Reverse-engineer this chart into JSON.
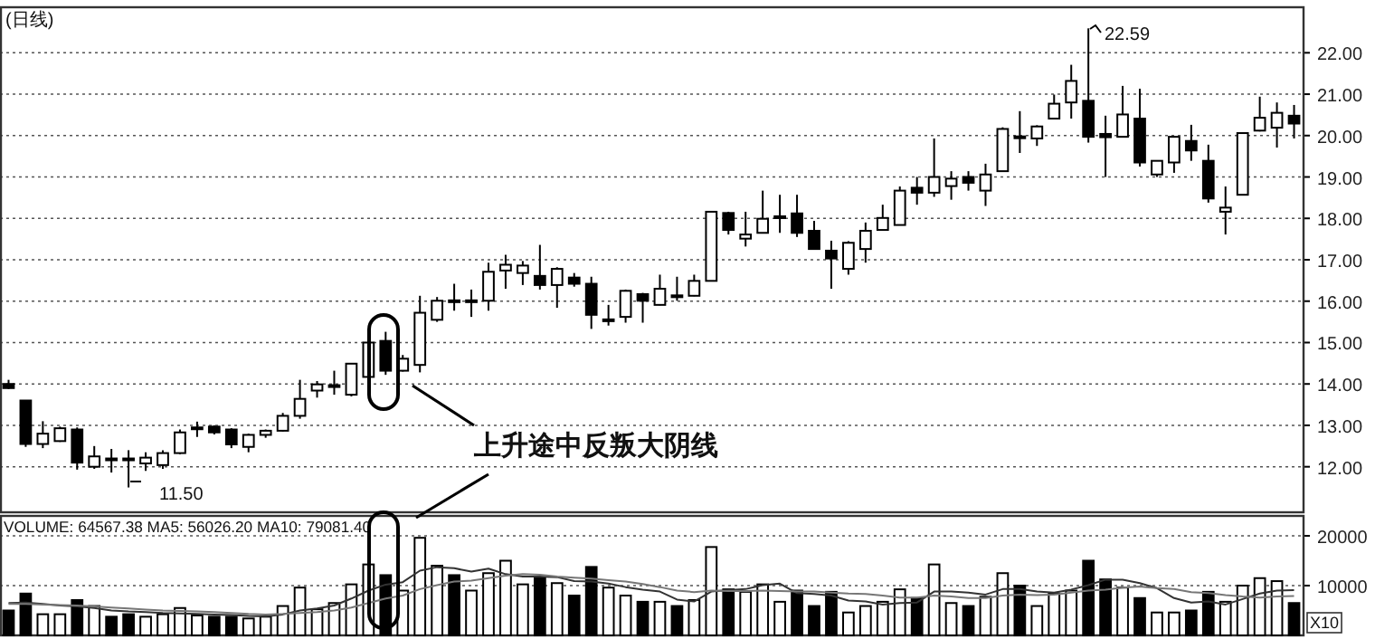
{
  "chart_data": [
    {
      "type": "candlestick",
      "title": "(日线)",
      "categories": [
        null,
        null,
        null,
        null,
        null,
        null,
        null,
        null,
        null,
        null,
        null,
        null,
        null,
        null,
        null,
        null,
        null,
        null,
        null,
        null,
        null,
        null,
        null,
        null,
        null,
        null,
        null,
        null,
        null,
        null,
        null,
        null,
        null,
        null,
        null,
        null,
        null,
        null,
        null,
        null,
        null,
        null,
        null,
        null,
        null,
        null,
        null,
        null,
        null,
        null,
        null,
        null,
        null,
        null,
        null,
        null,
        null,
        null,
        null,
        null,
        null,
        null,
        null,
        null,
        null,
        null,
        null,
        null,
        null,
        null,
        null,
        null,
        null,
        null,
        null,
        null
      ],
      "ohlc": [
        [
          14.0,
          14.1,
          13.88,
          13.9
        ],
        [
          13.6,
          13.6,
          12.48,
          12.55
        ],
        [
          12.55,
          13.1,
          12.45,
          12.8
        ],
        [
          12.62,
          12.97,
          12.6,
          12.93
        ],
        [
          12.9,
          12.95,
          11.93,
          12.1
        ],
        [
          12.0,
          12.5,
          11.95,
          12.25
        ],
        [
          12.2,
          12.43,
          11.86,
          12.18
        ],
        [
          12.18,
          12.4,
          11.5,
          12.2
        ],
        [
          12.08,
          12.35,
          11.9,
          12.22
        ],
        [
          12.04,
          12.4,
          11.95,
          12.33
        ],
        [
          12.33,
          12.9,
          12.3,
          12.83
        ],
        [
          12.93,
          13.09,
          12.72,
          12.95
        ],
        [
          12.97,
          13.0,
          12.78,
          12.83
        ],
        [
          12.9,
          12.93,
          12.45,
          12.54
        ],
        [
          12.48,
          12.8,
          12.35,
          12.77
        ],
        [
          12.77,
          12.9,
          12.7,
          12.87
        ],
        [
          12.87,
          13.3,
          12.85,
          13.23
        ],
        [
          13.23,
          14.1,
          13.16,
          13.64
        ],
        [
          13.84,
          14.07,
          13.67,
          13.99
        ],
        [
          13.95,
          14.32,
          13.74,
          13.97
        ],
        [
          13.74,
          14.5,
          13.7,
          14.49
        ],
        [
          14.17,
          15.05,
          14.1,
          15.0
        ],
        [
          15.04,
          15.26,
          14.22,
          14.32
        ],
        [
          14.32,
          14.7,
          14.3,
          14.61
        ],
        [
          14.46,
          16.13,
          14.28,
          15.72
        ],
        [
          15.55,
          16.1,
          15.5,
          16.01
        ],
        [
          16.0,
          16.42,
          15.77,
          16.02
        ],
        [
          16.0,
          16.28,
          15.62,
          16.02
        ],
        [
          16.01,
          16.93,
          15.77,
          16.71
        ],
        [
          16.74,
          17.12,
          16.3,
          16.88
        ],
        [
          16.68,
          16.97,
          16.39,
          16.86
        ],
        [
          16.61,
          17.36,
          16.28,
          16.39
        ],
        [
          16.39,
          16.82,
          15.84,
          16.78
        ],
        [
          16.57,
          16.68,
          16.35,
          16.42
        ],
        [
          16.42,
          16.59,
          15.33,
          15.67
        ],
        [
          15.54,
          15.91,
          15.41,
          15.56
        ],
        [
          15.62,
          16.28,
          15.48,
          16.25
        ],
        [
          16.17,
          16.2,
          15.48,
          16.01
        ],
        [
          15.91,
          16.64,
          15.9,
          16.3
        ],
        [
          16.12,
          16.59,
          16.01,
          16.14
        ],
        [
          16.13,
          16.64,
          16.12,
          16.49
        ],
        [
          16.49,
          18.16,
          16.49,
          18.16
        ],
        [
          18.13,
          18.16,
          17.61,
          17.72
        ],
        [
          17.51,
          18.16,
          17.32,
          17.61
        ],
        [
          17.65,
          18.67,
          17.65,
          17.99
        ],
        [
          18.03,
          18.57,
          17.65,
          18.05
        ],
        [
          18.12,
          18.57,
          17.55,
          17.65
        ],
        [
          17.7,
          17.94,
          17.26,
          17.26
        ],
        [
          17.22,
          17.46,
          16.3,
          17.03
        ],
        [
          16.78,
          17.45,
          16.64,
          17.41
        ],
        [
          17.26,
          17.9,
          16.93,
          17.7
        ],
        [
          17.72,
          18.33,
          17.72,
          18.01
        ],
        [
          17.84,
          18.77,
          17.84,
          18.67
        ],
        [
          18.74,
          19.0,
          18.33,
          18.62
        ],
        [
          18.62,
          19.93,
          18.52,
          19.0
        ],
        [
          18.78,
          19.14,
          18.45,
          18.96
        ],
        [
          19.0,
          19.14,
          18.67,
          18.86
        ],
        [
          18.67,
          19.32,
          18.3,
          19.06
        ],
        [
          19.14,
          20.2,
          19.14,
          20.16
        ],
        [
          19.96,
          20.59,
          19.58,
          19.98
        ],
        [
          19.93,
          20.25,
          19.75,
          20.22
        ],
        [
          20.41,
          20.99,
          20.4,
          20.77
        ],
        [
          20.8,
          21.71,
          20.41,
          21.32
        ],
        [
          20.84,
          22.59,
          19.83,
          19.97
        ],
        [
          20.04,
          20.48,
          19.0,
          19.96
        ],
        [
          19.97,
          21.2,
          19.97,
          20.51
        ],
        [
          20.41,
          21.13,
          19.25,
          19.35
        ],
        [
          19.06,
          19.4,
          19.0,
          19.39
        ],
        [
          19.35,
          19.97,
          19.1,
          19.97
        ],
        [
          19.87,
          20.26,
          19.39,
          19.64
        ],
        [
          19.39,
          19.78,
          18.38,
          18.48
        ],
        [
          18.16,
          18.77,
          17.61,
          18.26
        ],
        [
          18.57,
          20.06,
          18.57,
          20.06
        ],
        [
          20.12,
          20.94,
          20.1,
          20.43
        ],
        [
          20.19,
          20.8,
          19.71,
          20.55
        ],
        [
          20.48,
          20.74,
          19.93,
          20.29
        ]
      ],
      "ylim": [
        10.9,
        23.1
      ],
      "yticks": [
        {
          "value": 12,
          "label": "12.00"
        },
        {
          "value": 13,
          "label": "13.00"
        },
        {
          "value": 14,
          "label": "14.00"
        },
        {
          "value": 15,
          "label": "15.00"
        },
        {
          "value": 16,
          "label": "16.00"
        },
        {
          "value": 17,
          "label": "17.00"
        },
        {
          "value": 18,
          "label": "18.00"
        },
        {
          "value": 19,
          "label": "19.00"
        },
        {
          "value": 20,
          "label": "20.00"
        },
        {
          "value": 21,
          "label": "21.00"
        },
        {
          "value": 22,
          "label": "22.00"
        }
      ],
      "grid": "y",
      "tick_labels": "y",
      "annotations": [
        "上升途中反叛大阴线",
        "22.59",
        "11.50"
      ]
    },
    {
      "type": "bar",
      "categories": [
        null,
        null,
        null,
        null,
        null,
        null,
        null,
        null,
        null,
        null,
        null,
        null,
        null,
        null,
        null,
        null,
        null,
        null,
        null,
        null,
        null,
        null,
        null,
        null,
        null,
        null,
        null,
        null,
        null,
        null,
        null,
        null,
        null,
        null,
        null,
        null,
        null,
        null,
        null,
        null,
        null,
        null,
        null,
        null,
        null,
        null,
        null,
        null,
        null,
        null,
        null,
        null,
        null,
        null,
        null,
        null,
        null,
        null,
        null,
        null,
        null,
        null,
        null,
        null,
        null,
        null,
        null,
        null,
        null,
        null,
        null,
        null,
        null,
        null,
        null,
        null
      ],
      "series": [
        {
          "type": "bar",
          "values": [
            5000,
            8400,
            4250,
            4250,
            7100,
            5900,
            3750,
            4250,
            3750,
            4250,
            5500,
            4000,
            3750,
            3750,
            3400,
            3750,
            5900,
            9600,
            5250,
            6500,
            10250,
            14250,
            12100,
            9000,
            19600,
            14000,
            12100,
            9000,
            12500,
            15000,
            10250,
            11500,
            10500,
            8000,
            13750,
            9600,
            8000,
            6750,
            6750,
            5900,
            7100,
            17750,
            9250,
            8750,
            10250,
            6750,
            9000,
            5900,
            8750,
            4600,
            5900,
            6750,
            9250,
            7500,
            14250,
            6500,
            5900,
            7750,
            12500,
            10000,
            5900,
            8400,
            9000,
            15000,
            11250,
            9600,
            7500,
            4600,
            4600,
            5000,
            8750,
            6750,
            10000,
            11500,
            10900,
            6500
          ],
          "colors": [
            "#000000",
            "#000000",
            "#ffffff",
            "#ffffff",
            "#000000",
            "#ffffff",
            "#000000",
            "#000000",
            "#ffffff",
            "#ffffff",
            "#ffffff",
            "#ffffff",
            "#000000",
            "#000000",
            "#ffffff",
            "#ffffff",
            "#ffffff",
            "#ffffff",
            "#ffffff",
            "#ffffff",
            "#ffffff",
            "#ffffff",
            "#000000",
            "#ffffff",
            "#ffffff",
            "#ffffff",
            "#000000",
            "#ffffff",
            "#ffffff",
            "#ffffff",
            "#ffffff",
            "#000000",
            "#ffffff",
            "#000000",
            "#000000",
            "#ffffff",
            "#ffffff",
            "#000000",
            "#ffffff",
            "#000000",
            "#ffffff",
            "#ffffff",
            "#000000",
            "#ffffff",
            "#ffffff",
            "#ffffff",
            "#000000",
            "#000000",
            "#000000",
            "#ffffff",
            "#ffffff",
            "#ffffff",
            "#ffffff",
            "#000000",
            "#ffffff",
            "#ffffff",
            "#000000",
            "#ffffff",
            "#ffffff",
            "#000000",
            "#ffffff",
            "#ffffff",
            "#ffffff",
            "#000000",
            "#000000",
            "#ffffff",
            "#000000",
            "#ffffff",
            "#ffffff",
            "#000000",
            "#000000",
            "#ffffff",
            "#ffffff",
            "#ffffff",
            "#ffffff",
            "#000000"
          ]
        },
        {
          "type": "line",
          "color": "#333333",
          "values": [
            6500,
            6600,
            6300,
            6000,
            5800,
            5500,
            5000,
            4800,
            4700,
            4500,
            4400,
            4300,
            4200,
            4100,
            3900,
            3800,
            4200,
            5000,
            5400,
            6000,
            7400,
            9000,
            10200,
            10700,
            13000,
            13700,
            13500,
            12800,
            13400,
            12300,
            11800,
            11800,
            11700,
            10900,
            10800,
            10400,
            9700,
            9200,
            8800,
            7200,
            6800,
            8800,
            9100,
            9300,
            10100,
            10400,
            8500,
            8300,
            8000,
            7000,
            6800,
            6200,
            6500,
            6600,
            8800,
            8800,
            8600,
            8200,
            9300,
            9300,
            8800,
            8600,
            9200,
            10100,
            11200,
            11200,
            10500,
            9500,
            7500,
            6600,
            6800,
            6200,
            7300,
            8400,
            9000,
            9100
          ]
        },
        {
          "type": "line",
          "color": "#777777",
          "values": [
            6300,
            6300,
            6200,
            6100,
            6000,
            5800,
            5600,
            5400,
            5200,
            5000,
            4900,
            4800,
            4700,
            4500,
            4300,
            4200,
            4300,
            4500,
            4700,
            5000,
            5600,
            6500,
            7400,
            8000,
            9300,
            10100,
            10800,
            11000,
            11500,
            12000,
            12300,
            12200,
            11800,
            11600,
            11400,
            11100,
            10800,
            10300,
            9700,
            9000,
            8700,
            9000,
            8900,
            8900,
            9000,
            8900,
            8800,
            8800,
            8600,
            8400,
            8300,
            8000,
            7600,
            7600,
            8000,
            7800,
            7500,
            7500,
            8000,
            8200,
            8100,
            8200,
            8600,
            9000,
            9200,
            9600,
            9800,
            9500,
            9300,
            8700,
            8500,
            8100,
            7800,
            7600,
            7800,
            7900
          ]
        }
      ],
      "ylim": [
        0,
        24000
      ],
      "yticks": [
        10000,
        20000
      ],
      "grid": "y",
      "tick_labels": "y",
      "annotations": [
        "VOLUME: 64567.38 MA5: 56026.20 MA10: 79081.40",
        "X10"
      ]
    }
  ]
}
